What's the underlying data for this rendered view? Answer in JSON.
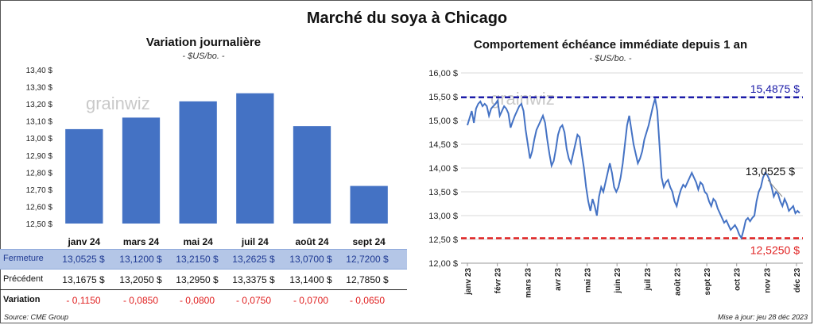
{
  "title": "Marché du soya à Chicago",
  "left": {
    "subtitle": "Variation journalière",
    "units": "- $US/bo. -"
  },
  "right": {
    "subtitle": "Comportement échéance immédiate depuis 1 an",
    "units": "- $US/bo. -",
    "high_label": "15,4875 $",
    "low_label": "12,5250 $",
    "last_label": "13,0525 $"
  },
  "watermark": "grainwiz",
  "table": {
    "headers": [
      "janv 24",
      "mars 24",
      "mai 24",
      "juil 24",
      "août 24",
      "sept 24"
    ],
    "rows": [
      {
        "label": "Fermeture",
        "values": [
          "13,0525  $",
          "13,1200  $",
          "13,2150  $",
          "13,2625  $",
          "13,0700  $",
          "12,7200  $"
        ]
      },
      {
        "label": "Précédent",
        "values": [
          "13,1675  $",
          "13,2050  $",
          "13,2950  $",
          "13,3375  $",
          "13,1400  $",
          "12,7850  $"
        ]
      },
      {
        "label": "Variation",
        "values": [
          "- 0,1150",
          "- 0,0850",
          "- 0,0800",
          "- 0,0750",
          "- 0,0700",
          "- 0,0650"
        ]
      }
    ]
  },
  "footer": {
    "source": "Source: CME Group",
    "update": "Mise à jour: jeu 28 déc 2023"
  },
  "colors": {
    "bar": "#4472c4",
    "line": "#4472c4",
    "high": "#1c1ca8",
    "low": "#e02020",
    "table_header_bg": "#b4c6e7",
    "table_header_text": "#1f3a93",
    "negative": "#e02020"
  },
  "chart_data": [
    {
      "type": "bar",
      "categories": [
        "janv 24",
        "mars 24",
        "mai 24",
        "juil 24",
        "août 24",
        "sept 24"
      ],
      "values": [
        13.0525,
        13.12,
        13.215,
        13.2625,
        13.07,
        12.72
      ],
      "title": "Variation journalière",
      "ylim": [
        12.5,
        13.4
      ],
      "yticks": [
        "12,50 $",
        "12,60 $",
        "12,70 $",
        "12,80 $",
        "12,90 $",
        "13,00 $",
        "13,10 $",
        "13,20 $",
        "13,30 $",
        "13,40 $"
      ],
      "grid": false
    },
    {
      "type": "line",
      "title": "Comportement échéance immédiate depuis 1 an",
      "ylim": [
        12.0,
        16.0
      ],
      "yticks": [
        "12,00 $",
        "12,50 $",
        "13,00 $",
        "13,50 $",
        "14,00 $",
        "14,50 $",
        "15,00 $",
        "15,50 $",
        "16,00 $"
      ],
      "xticks": [
        "janv 23",
        "févr 23",
        "mars 23",
        "avr 23",
        "mai 23",
        "juin 23",
        "juil 23",
        "août 23",
        "sept 23",
        "oct 23",
        "nov 23",
        "déc 23"
      ],
      "grid": true,
      "reference_lines": [
        {
          "label": "15,4875 $",
          "value": 15.4875,
          "color": "#1c1ca8"
        },
        {
          "label": "12,5250 $",
          "value": 12.525,
          "color": "#e02020"
        }
      ],
      "values": [
        14.9,
        15.05,
        15.2,
        14.95,
        15.25,
        15.35,
        15.4,
        15.3,
        15.35,
        15.3,
        15.1,
        15.25,
        15.3,
        15.35,
        15.42,
        15.1,
        15.2,
        15.3,
        15.25,
        15.15,
        14.85,
        14.98,
        15.1,
        15.2,
        15.3,
        15.35,
        15.2,
        14.8,
        14.5,
        14.2,
        14.35,
        14.6,
        14.8,
        14.9,
        15.0,
        15.1,
        14.95,
        14.6,
        14.3,
        14.05,
        14.15,
        14.4,
        14.7,
        14.85,
        14.9,
        14.75,
        14.4,
        14.2,
        14.1,
        14.3,
        14.5,
        14.7,
        14.65,
        14.3,
        14.0,
        13.6,
        13.3,
        13.1,
        13.35,
        13.2,
        13.0,
        13.4,
        13.6,
        13.5,
        13.7,
        13.9,
        14.1,
        13.9,
        13.6,
        13.5,
        13.6,
        13.8,
        14.1,
        14.5,
        14.9,
        15.1,
        14.8,
        14.5,
        14.3,
        14.1,
        14.2,
        14.35,
        14.6,
        14.75,
        14.9,
        15.1,
        15.3,
        15.46,
        15.2,
        14.5,
        13.8,
        13.6,
        13.7,
        13.75,
        13.6,
        13.5,
        13.3,
        13.2,
        13.4,
        13.55,
        13.65,
        13.6,
        13.7,
        13.8,
        13.9,
        13.8,
        13.7,
        13.55,
        13.7,
        13.65,
        13.5,
        13.45,
        13.3,
        13.2,
        13.35,
        13.3,
        13.15,
        13.05,
        12.95,
        12.85,
        12.9,
        12.8,
        12.7,
        12.75,
        12.8,
        12.72,
        12.6,
        12.53,
        12.7,
        12.9,
        12.95,
        12.88,
        12.95,
        13.0,
        13.3,
        13.5,
        13.6,
        13.8,
        13.9,
        13.85,
        13.75,
        13.6,
        13.4,
        13.5,
        13.45,
        13.3,
        13.2,
        13.35,
        13.25,
        13.1,
        13.15,
        13.2,
        13.05,
        13.1,
        13.0525
      ]
    }
  ]
}
